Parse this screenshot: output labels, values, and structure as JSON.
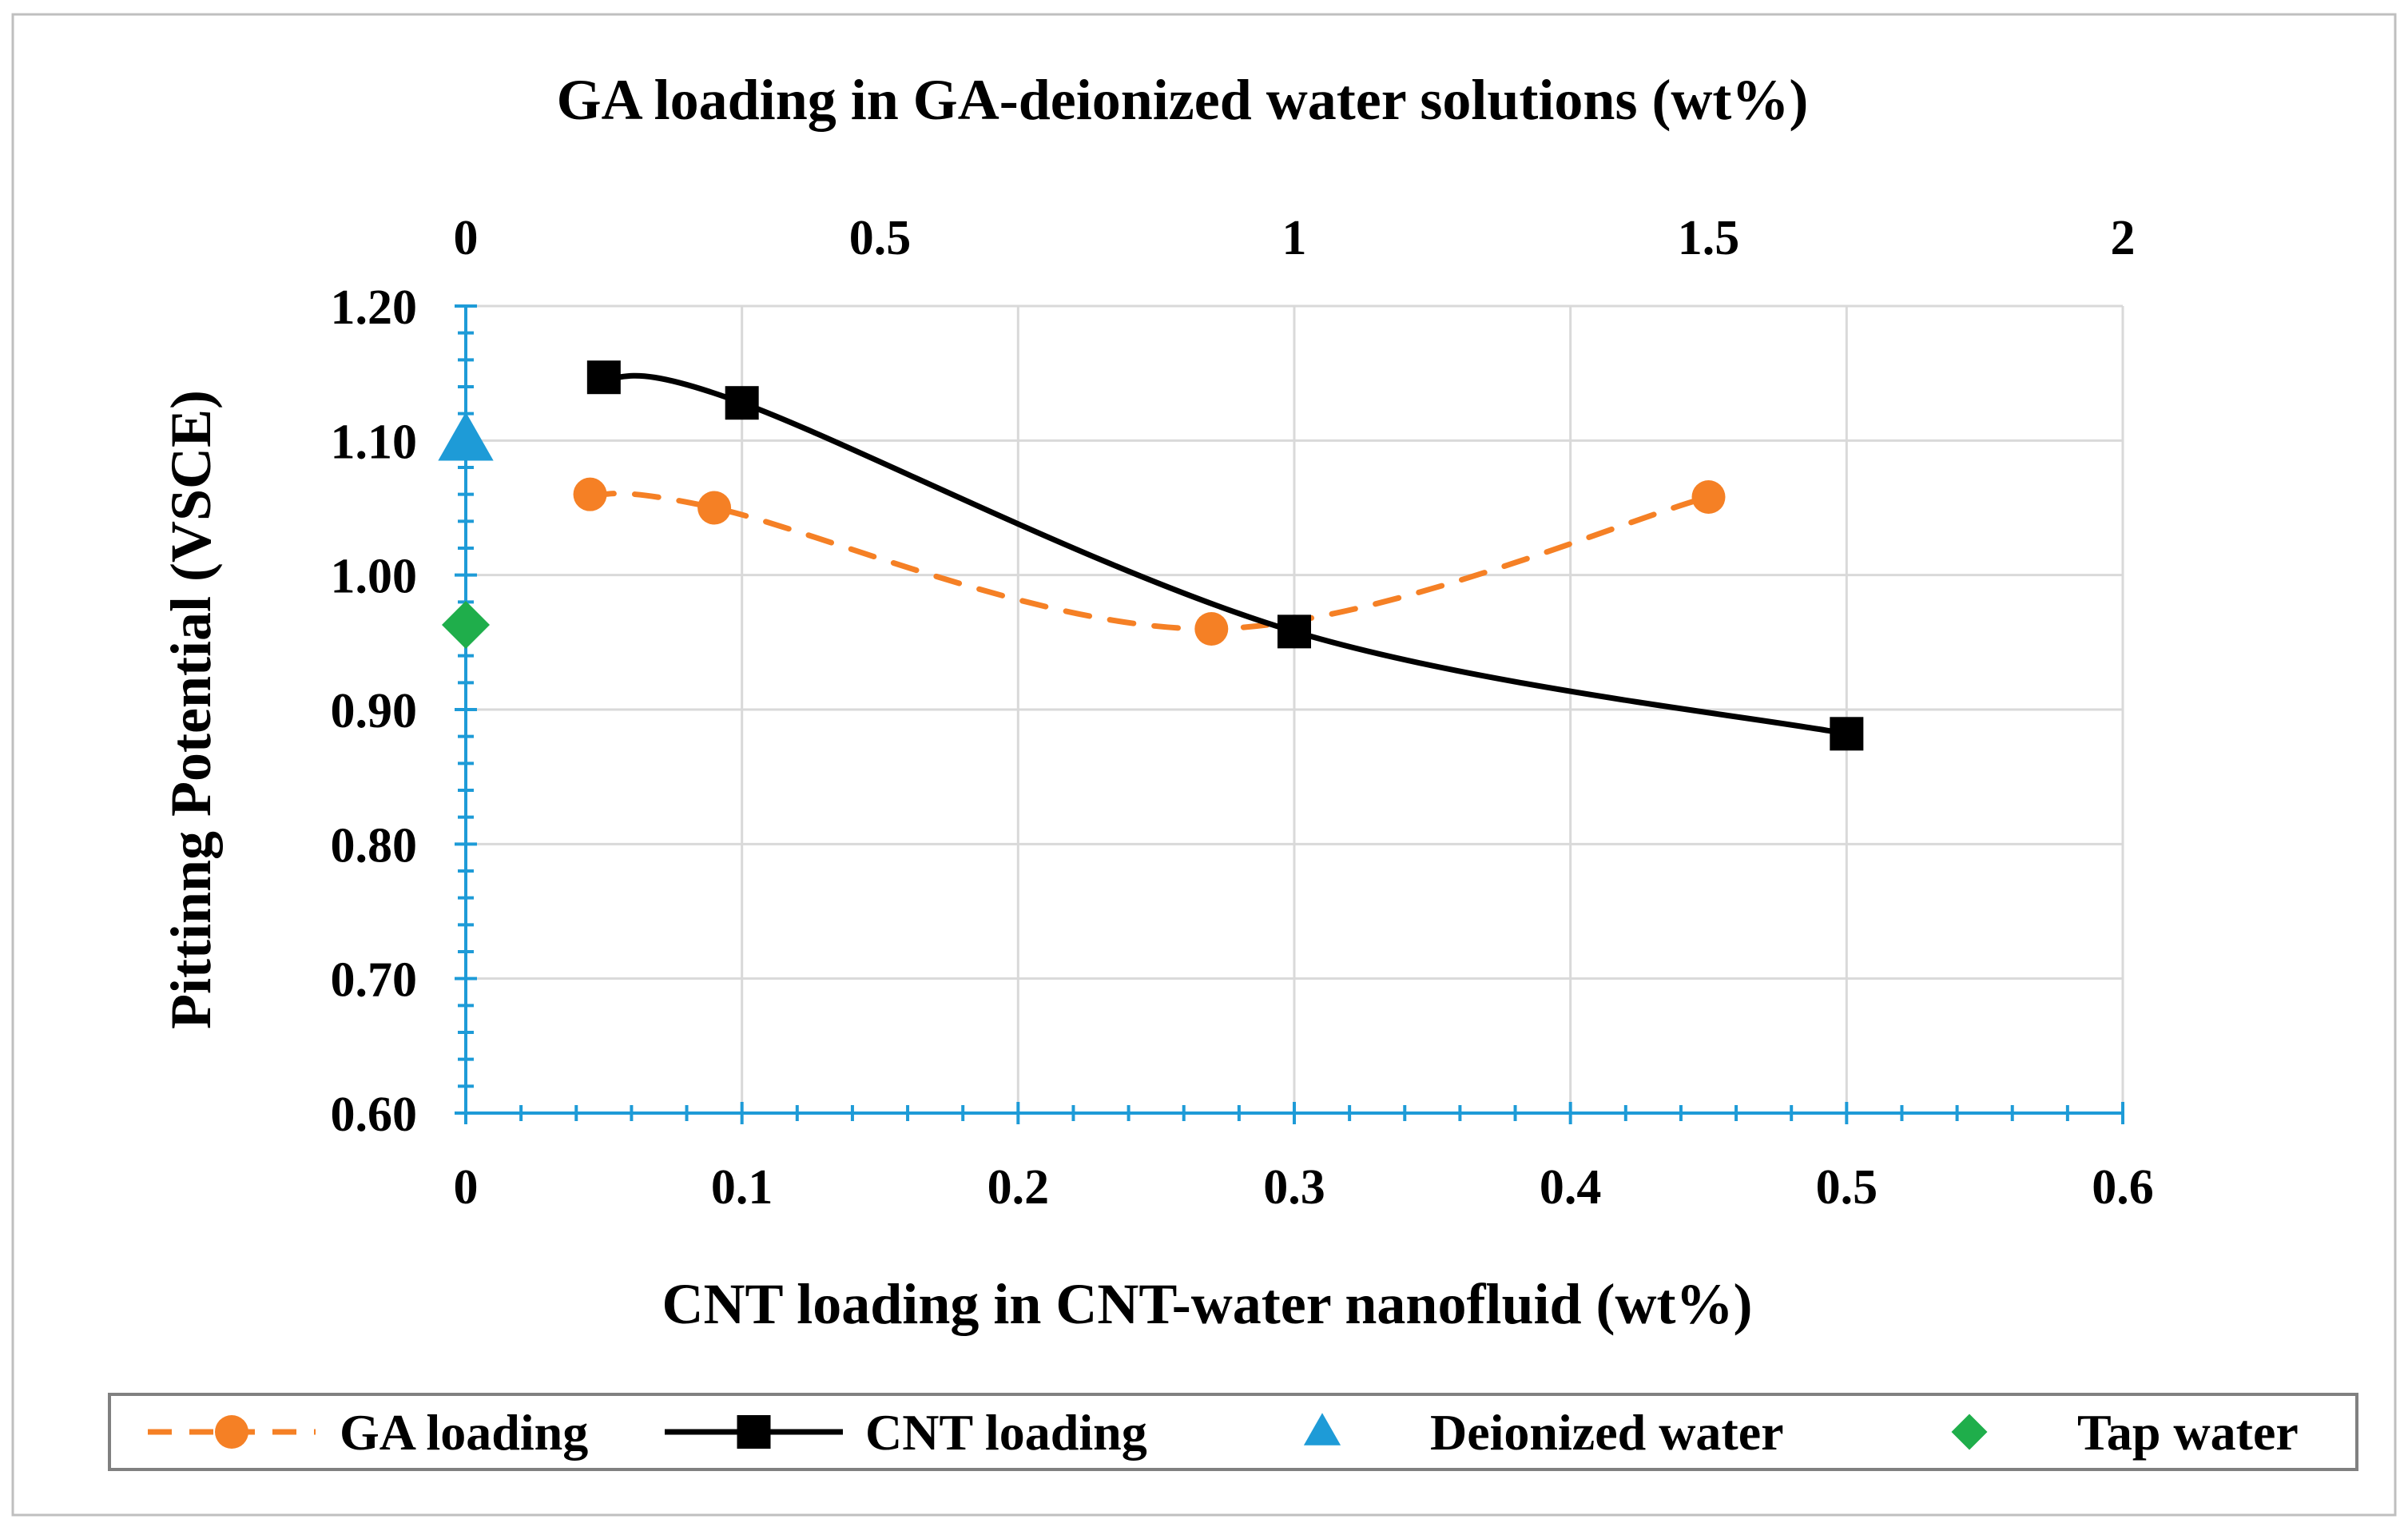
{
  "chart_data": {
    "type": "line",
    "top_axis": {
      "title": "GA loading in GA-deionized water solutions (wt%)",
      "range": [
        0,
        2
      ],
      "ticks": [
        0,
        0.5,
        1,
        1.5,
        2
      ],
      "tick_labels": [
        "0",
        "0.5",
        "1",
        "1.5",
        "2"
      ]
    },
    "x_axis": {
      "title": "CNT loading in CNT-water nanofluid (wt%)",
      "range": [
        0,
        0.6
      ],
      "ticks": [
        0,
        0.1,
        0.2,
        0.3,
        0.4,
        0.5,
        0.6
      ],
      "tick_labels": [
        "0",
        "0.1",
        "0.2",
        "0.3",
        "0.4",
        "0.5",
        "0.6"
      ]
    },
    "y_axis": {
      "title": "Pittinng Potential (VSCE)",
      "range": [
        0.6,
        1.2
      ],
      "ticks": [
        0.6,
        0.7,
        0.8,
        0.9,
        1.0,
        1.1,
        1.2
      ],
      "tick_labels": [
        "0.60",
        "0.70",
        "0.80",
        "0.90",
        "1.00",
        "1.10",
        "1.20"
      ]
    },
    "grid": true,
    "series": [
      {
        "name": "GA loading",
        "axis": "top",
        "style": "dashed",
        "marker": "circle",
        "color": "#F58025",
        "x": [
          0.15,
          0.3,
          0.9,
          1.5
        ],
        "y": [
          1.06,
          1.05,
          0.96,
          1.058
        ]
      },
      {
        "name": "CNT loading",
        "axis": "bottom",
        "style": "solid",
        "marker": "square",
        "color": "#000000",
        "x": [
          0.05,
          0.1,
          0.3,
          0.5
        ],
        "y": [
          1.147,
          1.128,
          0.958,
          0.882
        ]
      },
      {
        "name": "Deionized water",
        "axis": "bottom",
        "style": "none",
        "marker": "triangle",
        "color": "#1E9BD7",
        "x": [
          0
        ],
        "y": [
          1.1
        ]
      },
      {
        "name": "Tap water",
        "axis": "bottom",
        "style": "none",
        "marker": "diamond",
        "color": "#1FAE4B",
        "x": [
          0
        ],
        "y": [
          0.963
        ]
      }
    ],
    "legend": {
      "placement": "bottom",
      "entries": [
        "GA loading",
        "CNT loading",
        "Deionized water",
        "Tap water"
      ]
    },
    "axis_color": "#1E9BD7",
    "grid_color": "#D9D9D9"
  }
}
